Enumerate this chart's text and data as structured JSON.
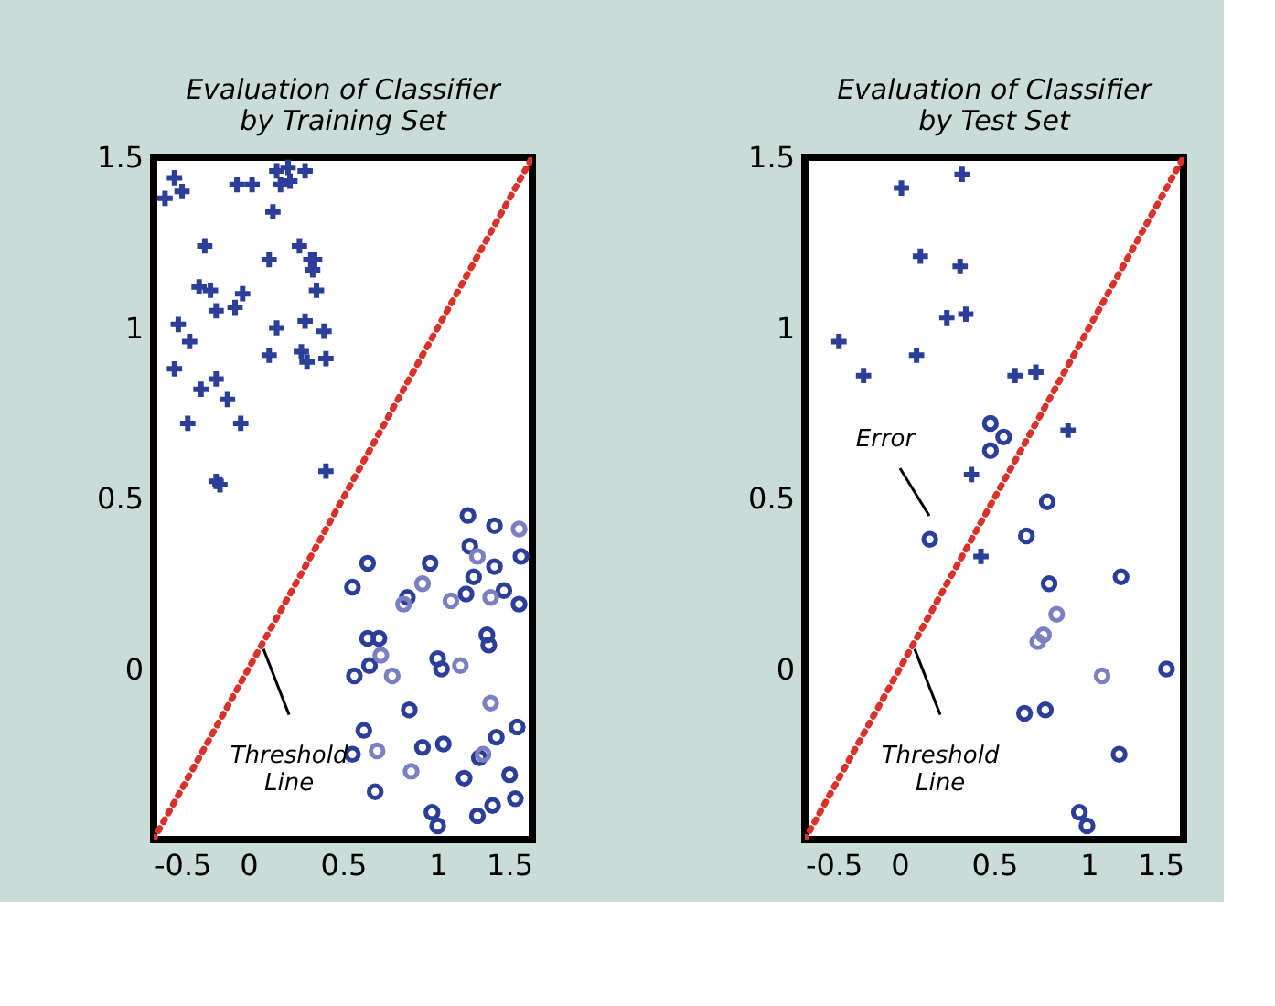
{
  "chart_data": [
    {
      "type": "scatter",
      "title": "Evaluation of Classifier\nby Training Set",
      "xlim": [
        -0.5,
        1.5
      ],
      "ylim": [
        -0.5,
        1.5
      ],
      "xticks": [
        -0.5,
        0,
        0.5,
        1,
        1.5
      ],
      "yticks": [
        {
          "value": -0.5,
          "label": null
        },
        0,
        0.5,
        1,
        1.5
      ],
      "grid": false,
      "annotations": [
        {
          "text": "Threshold\nLine",
          "x": 0.08,
          "y": 0.08
        }
      ],
      "series": [
        {
          "type": "scatter",
          "marker": "cross",
          "color": "#2b3f98",
          "x": [
            -0.44,
            -0.39,
            -0.35,
            -0.23,
            -0.06,
            0.02,
            0.13,
            0.15,
            0.21,
            0.22,
            0.3,
            0.17,
            0.11,
            0.27,
            0.33,
            0.34,
            0.35,
            -0.26,
            -0.2,
            -0.03,
            -0.17,
            -0.07,
            0.36,
            0.3,
            0.15,
            -0.37,
            -0.31,
            0.4,
            0.11,
            0.28,
            0.31,
            0.41,
            -0.39,
            -0.25,
            -0.17,
            -0.11,
            -0.32,
            -0.04,
            -0.17,
            -0.15,
            0.41
          ],
          "values": [
            1.38,
            1.44,
            1.4,
            1.24,
            1.42,
            1.42,
            1.34,
            1.46,
            1.47,
            1.43,
            1.46,
            1.42,
            1.2,
            1.24,
            1.2,
            1.17,
            1.2,
            1.12,
            1.11,
            1.1,
            1.05,
            1.06,
            1.11,
            1.02,
            1.0,
            1.01,
            0.96,
            0.99,
            0.92,
            0.93,
            0.9,
            0.91,
            0.88,
            0.82,
            0.85,
            0.79,
            0.72,
            0.72,
            0.55,
            0.54,
            0.58
          ]
        },
        {
          "type": "scatter",
          "marker": "circle",
          "color": "#2b3f98",
          "x": [
            1.16,
            1.3,
            0.63,
            0.55,
            0.96,
            0.84,
            1.17,
            1.44,
            1.3,
            1.19,
            1.15,
            1.35,
            1.43,
            0.63,
            0.69,
            0.64,
            0.56,
            1.0,
            1.02,
            1.26,
            1.27,
            0.85,
            0.61,
            0.55,
            0.67,
            0.92,
            1.03,
            1.14,
            1.22,
            1.31,
            1.42,
            1.38,
            1.29,
            1.41,
            1.21,
            0.97,
            1.0
          ],
          "values": [
            0.45,
            0.42,
            0.31,
            0.24,
            0.31,
            0.21,
            0.36,
            0.33,
            0.3,
            0.27,
            0.22,
            0.23,
            0.19,
            0.09,
            0.09,
            0.01,
            -0.02,
            0.03,
            0.0,
            0.1,
            0.07,
            -0.12,
            -0.18,
            -0.25,
            -0.36,
            -0.23,
            -0.22,
            -0.32,
            -0.26,
            -0.2,
            -0.17,
            -0.31,
            -0.4,
            -0.38,
            -0.43,
            -0.42,
            -0.46
          ]
        },
        {
          "type": "scatter",
          "marker": "circle",
          "color": "#7b80c0",
          "x": [
            1.43,
            0.92,
            0.82,
            1.07,
            1.21,
            1.28,
            0.7,
            0.76,
            1.12,
            1.28,
            0.68,
            0.86,
            1.24
          ],
          "values": [
            0.41,
            0.25,
            0.19,
            0.2,
            0.33,
            0.21,
            0.04,
            -0.02,
            0.01,
            -0.1,
            -0.24,
            -0.3,
            -0.25
          ]
        },
        {
          "type": "line",
          "line_style": "dotted",
          "marker": "none",
          "color": "#d8322a",
          "x": [
            -0.5,
            1.5
          ],
          "values": [
            -0.5,
            1.5
          ]
        }
      ]
    },
    {
      "type": "scatter",
      "title": "Evaluation of Classifier\nby Test Set",
      "xlim": [
        -0.5,
        1.5
      ],
      "ylim": [
        -0.5,
        1.5
      ],
      "xticks": [
        -0.5,
        0,
        0.5,
        1,
        1.5
      ],
      "yticks": [
        {
          "value": -0.5,
          "label": null
        },
        0,
        0.5,
        1,
        1.5
      ],
      "grid": false,
      "annotations": [
        {
          "text": "Threshold\nLine",
          "x": 0.08,
          "y": 0.08
        },
        "Error"
      ],
      "series": [
        {
          "type": "scatter",
          "marker": "cross",
          "color": "#2b3f98",
          "x": [
            0.33,
            0.01,
            0.11,
            0.32,
            0.25,
            0.35,
            -0.32,
            0.09,
            -0.19,
            0.61,
            0.72,
            0.89,
            0.38,
            0.43
          ],
          "values": [
            1.45,
            1.41,
            1.21,
            1.18,
            1.03,
            1.04,
            0.96,
            0.92,
            0.86,
            0.86,
            0.87,
            0.7,
            0.57,
            0.33
          ]
        },
        {
          "type": "scatter",
          "marker": "circle",
          "color": "#2b3f98",
          "x": [
            0.48,
            0.55,
            0.48,
            0.78,
            0.16,
            0.67,
            1.17,
            0.79,
            1.41,
            0.66,
            0.77,
            1.16,
            0.95,
            0.99
          ],
          "values": [
            0.72,
            0.68,
            0.64,
            0.49,
            0.38,
            0.39,
            0.27,
            0.25,
            0.0,
            -0.13,
            -0.12,
            -0.25,
            -0.42,
            -0.46
          ]
        },
        {
          "type": "scatter",
          "marker": "circle",
          "color": "#7b80c0",
          "x": [
            0.83,
            0.76,
            0.73,
            1.07
          ],
          "values": [
            0.16,
            0.1,
            0.08,
            -0.02
          ]
        },
        {
          "type": "line",
          "line_style": "dotted",
          "marker": "none",
          "color": "#d8322a",
          "x": [
            -0.5,
            1.5
          ],
          "values": [
            -0.5,
            1.5
          ]
        }
      ]
    }
  ]
}
